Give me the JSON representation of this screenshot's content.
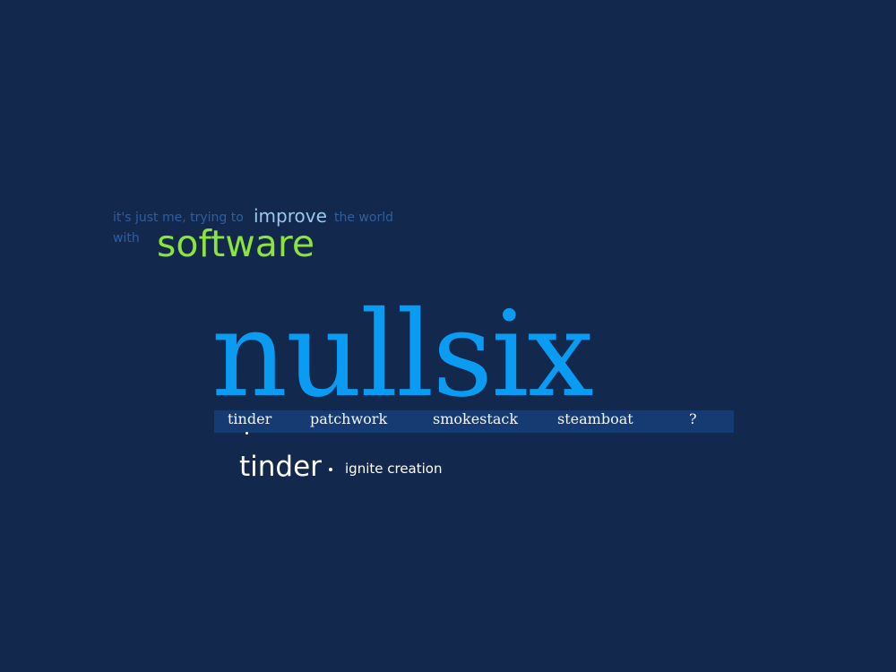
{
  "tagline": {
    "part1": "it's just me, trying to",
    "highlight": "improve",
    "part2": "the world",
    "part3": "with",
    "emphasis": "software"
  },
  "logo": {
    "text": "nullsix"
  },
  "nav": {
    "items": [
      {
        "label": "tinder"
      },
      {
        "label": "patchwork"
      },
      {
        "label": "smokestack"
      },
      {
        "label": "steamboat"
      },
      {
        "label": "?"
      }
    ],
    "active_index": 0
  },
  "project": {
    "title": "tinder",
    "description": "ignite creation"
  },
  "colors": {
    "background": "#12284d",
    "logo": "#0a9cf3",
    "emphasis": "#8be33c",
    "tagline": "#2f5f9e",
    "highlight": "#9dc7ec",
    "nav_bar": "#153b72"
  }
}
